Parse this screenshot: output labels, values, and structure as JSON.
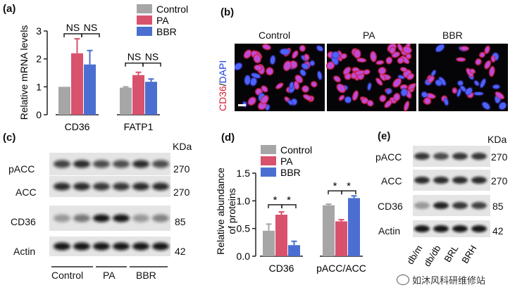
{
  "panels": {
    "a": "(a)",
    "b": "(b)",
    "c": "(c)",
    "d": "(d)",
    "e": "(e)"
  },
  "colors": {
    "control": "#a6a6a6",
    "pa": "#d8526e",
    "bbr": "#4b6fd1"
  },
  "chart_data": [
    {
      "panel": "(a)",
      "type": "bar",
      "categories": [
        "CD36",
        "FATP1"
      ],
      "series": [
        {
          "name": "Control",
          "values": [
            1.0,
            0.97
          ],
          "errors": [
            0.0,
            0.03
          ]
        },
        {
          "name": "PA",
          "values": [
            2.2,
            1.42
          ],
          "errors": [
            0.52,
            0.1
          ]
        },
        {
          "name": "BBR",
          "values": [
            1.8,
            1.18
          ],
          "errors": [
            0.5,
            0.1
          ]
        }
      ],
      "ylabel": "Relative mRNA levels",
      "ylim": [
        0,
        3
      ],
      "yticks": [
        "0",
        "1",
        "2",
        "3"
      ],
      "legend": "top-right",
      "annotations": [
        "NS",
        "NS",
        "NS",
        "NS"
      ]
    },
    {
      "panel": "(d)",
      "type": "bar",
      "categories": [
        "CD36",
        "pACC/ACC"
      ],
      "series": [
        {
          "name": "Control",
          "values": [
            0.46,
            0.92
          ],
          "errors": [
            0.12,
            0.02
          ]
        },
        {
          "name": "PA",
          "values": [
            0.75,
            0.63
          ],
          "errors": [
            0.05,
            0.03
          ]
        },
        {
          "name": "BBR",
          "values": [
            0.2,
            1.05
          ],
          "errors": [
            0.07,
            0.04
          ]
        }
      ],
      "ylabel": "Relative abundance of proteins",
      "ylabel_lines": [
        "Relative abundance",
        "of proteins"
      ],
      "ylim": [
        0,
        1.5
      ],
      "yticks": [
        "0.0",
        "0.5",
        "1.0",
        "1.5"
      ],
      "legend": "top",
      "annotations": [
        "*",
        "*",
        "*",
        "*"
      ]
    }
  ],
  "micro": {
    "ylabel_red": "CD36",
    "ylabel_slash": "/",
    "ylabel_blue": "DAPI",
    "columns": [
      "Control",
      "PA",
      "BBR"
    ]
  },
  "blot_c": {
    "unit": "KDa",
    "rows": [
      {
        "name": "pACC",
        "kda": "270"
      },
      {
        "name": "ACC",
        "kda": "270"
      },
      {
        "name": "CD36",
        "kda": "85"
      },
      {
        "name": "Actin",
        "kda": "42"
      }
    ],
    "groups": [
      "Control",
      "PA",
      "BBR"
    ]
  },
  "blot_e": {
    "unit": "KDa",
    "rows": [
      {
        "name": "pACC",
        "kda": "270"
      },
      {
        "name": "ACC",
        "kda": "270"
      },
      {
        "name": "CD36",
        "kda": "85"
      },
      {
        "name": "Actin",
        "kda": "42"
      }
    ],
    "lanes": [
      "db/m",
      "db/db",
      "BRL",
      "BRH"
    ]
  },
  "watermark": "如沐风科研维修站"
}
